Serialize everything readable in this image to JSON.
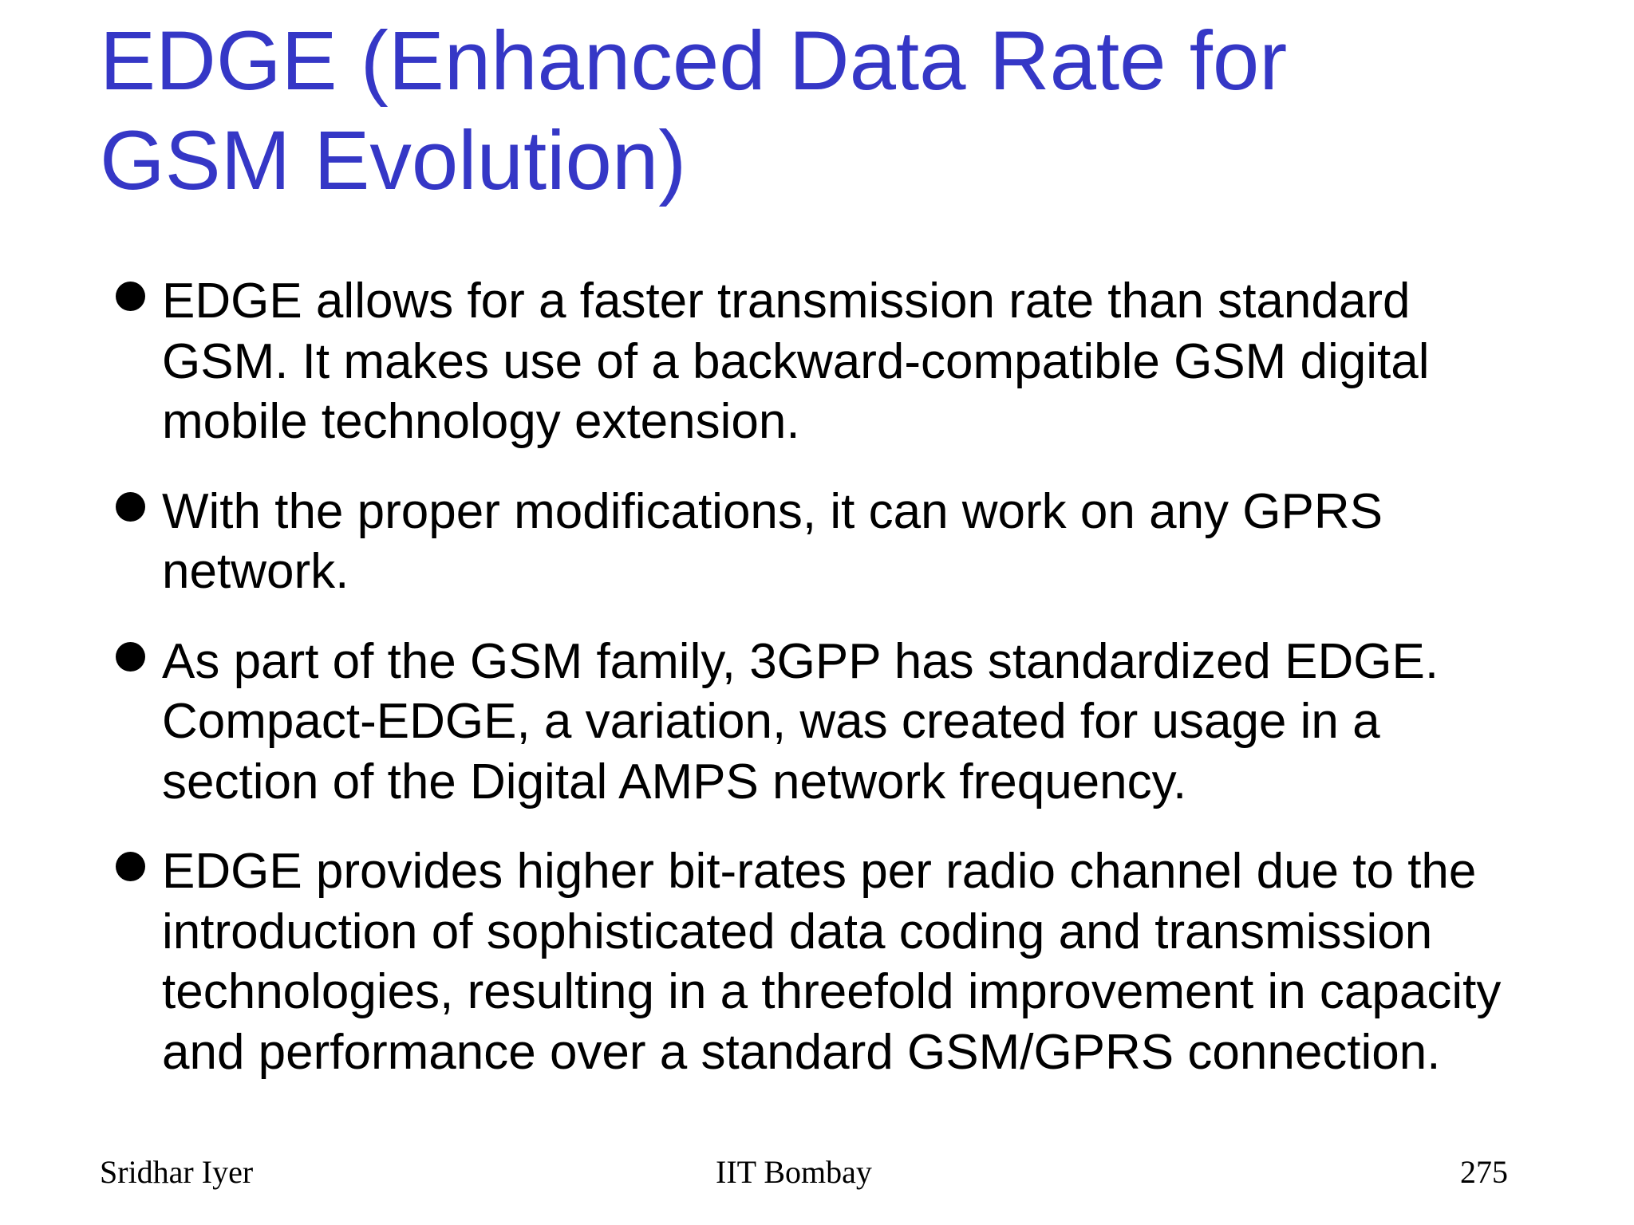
{
  "slide": {
    "title_line1": "EDGE (Enhanced Data Rate for",
    "title_line2": "GSM Evolution)",
    "bullets": [
      {
        "lines": [
          "EDGE allows for a faster transmission rate than standard",
          "GSM. It makes use of a backward-compatible GSM digital",
          "mobile technology extension."
        ]
      },
      {
        "lines": [
          "With the proper modifications, it can work on any GPRS",
          "network."
        ]
      },
      {
        "lines": [
          "As part of the GSM family, 3GPP has standardized EDGE.",
          "Compact-EDGE, a variation, was created for usage in a",
          "section of the Digital AMPS network frequency."
        ]
      },
      {
        "lines": [
          "EDGE provides higher bit-rates per radio channel due to the",
          "introduction of sophisticated data coding and transmission",
          "technologies, resulting in a threefold improvement in capacity",
          "and performance over a standard GSM/GPRS connection."
        ]
      }
    ]
  },
  "footer": {
    "author": "Sridhar Iyer",
    "institution": "IIT Bombay",
    "page_number": "275"
  },
  "colors": {
    "title": "#3537c6",
    "body_text": "#000000",
    "background": "#ffffff"
  },
  "icons": {
    "bullet": "filled-circle"
  }
}
